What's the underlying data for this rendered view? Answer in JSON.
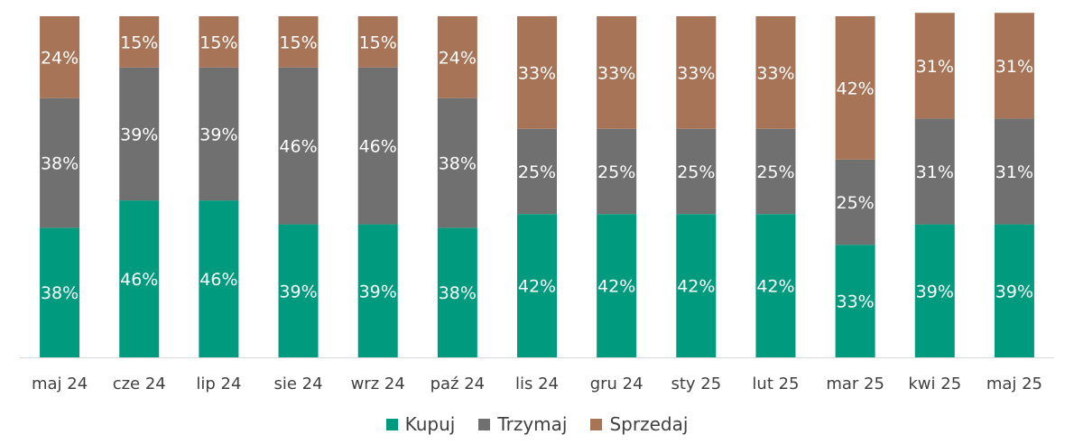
{
  "chart_data": {
    "type": "bar",
    "stacked": true,
    "percent_labels": true,
    "categories": [
      "maj 24",
      "cze 24",
      "lip 24",
      "sie 24",
      "wrz 24",
      "paź 24",
      "lis 24",
      "gru 24",
      "sty 25",
      "lut 25",
      "mar 25",
      "kwi 25",
      "maj 25"
    ],
    "series": [
      {
        "name": "Kupuj",
        "color": "#009A7E",
        "values": [
          38,
          46,
          46,
          39,
          39,
          38,
          42,
          42,
          42,
          42,
          33,
          39,
          39
        ]
      },
      {
        "name": "Trzymaj",
        "color": "#707070",
        "values": [
          38,
          39,
          39,
          46,
          46,
          38,
          25,
          25,
          25,
          25,
          25,
          31,
          31
        ]
      },
      {
        "name": "Sprzedaj",
        "color": "#A87457",
        "values": [
          24,
          15,
          15,
          15,
          15,
          24,
          33,
          33,
          33,
          33,
          42,
          31,
          31
        ]
      }
    ],
    "ylim": [
      0,
      100
    ],
    "grid": false,
    "legend": "bottom-center"
  }
}
